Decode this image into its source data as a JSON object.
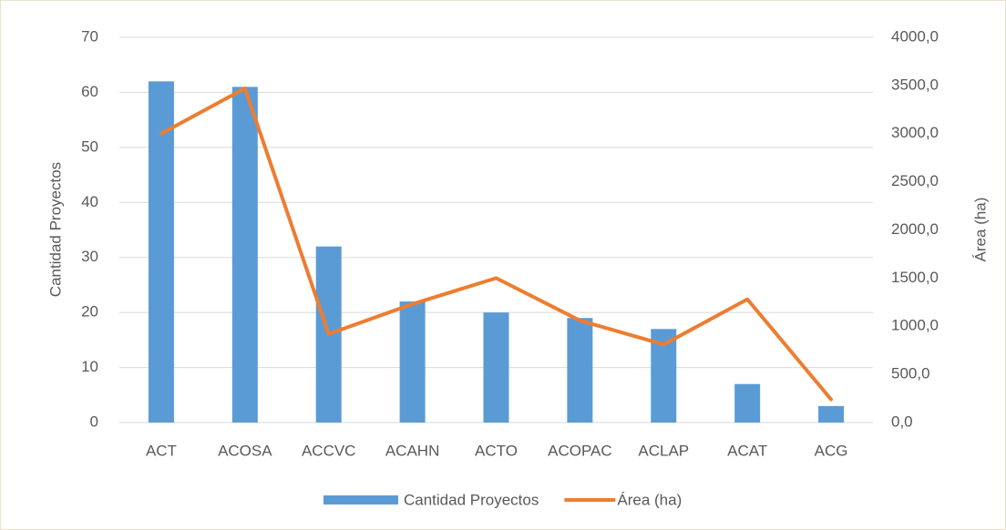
{
  "chart_data": {
    "type": "bar_line",
    "categories": [
      "ACT",
      "ACOSA",
      "ACCVC",
      "ACAHN",
      "ACTO",
      "ACOPAC",
      "ACLAP",
      "ACAT",
      "ACG"
    ],
    "series": [
      {
        "name": "Cantidad Proyectos",
        "type": "bar",
        "color": "#5b9bd5",
        "values": [
          62,
          61,
          32,
          22,
          20,
          19,
          17,
          7,
          3
        ]
      },
      {
        "name": "Área (ha)",
        "type": "line",
        "axis": "y2",
        "color": "#ed7d31",
        "values": [
          3000,
          3470,
          920,
          1230,
          1500,
          1060,
          810,
          1280,
          240
        ]
      }
    ],
    "y_label": "Cantidad Proyectos",
    "y2_label": "Área (ha)",
    "ylim": [
      0,
      70
    ],
    "yticks": [
      0,
      10,
      20,
      30,
      40,
      50,
      60,
      70
    ],
    "y2lim": [
      0,
      4000
    ],
    "y2ticks": [
      {
        "value": 0,
        "label": "0,0"
      },
      {
        "value": 500,
        "label": "500,0"
      },
      {
        "value": 1000,
        "label": "1000,0"
      },
      {
        "value": 1500,
        "label": "1500,0"
      },
      {
        "value": 2000,
        "label": "2000,0"
      },
      {
        "value": 2500,
        "label": "2500,0"
      },
      {
        "value": 3000,
        "label": "3000,0"
      },
      {
        "value": 3500,
        "label": "3500,0"
      },
      {
        "value": 4000,
        "label": "4000,0"
      }
    ],
    "grid": true,
    "legend": "bottom"
  }
}
